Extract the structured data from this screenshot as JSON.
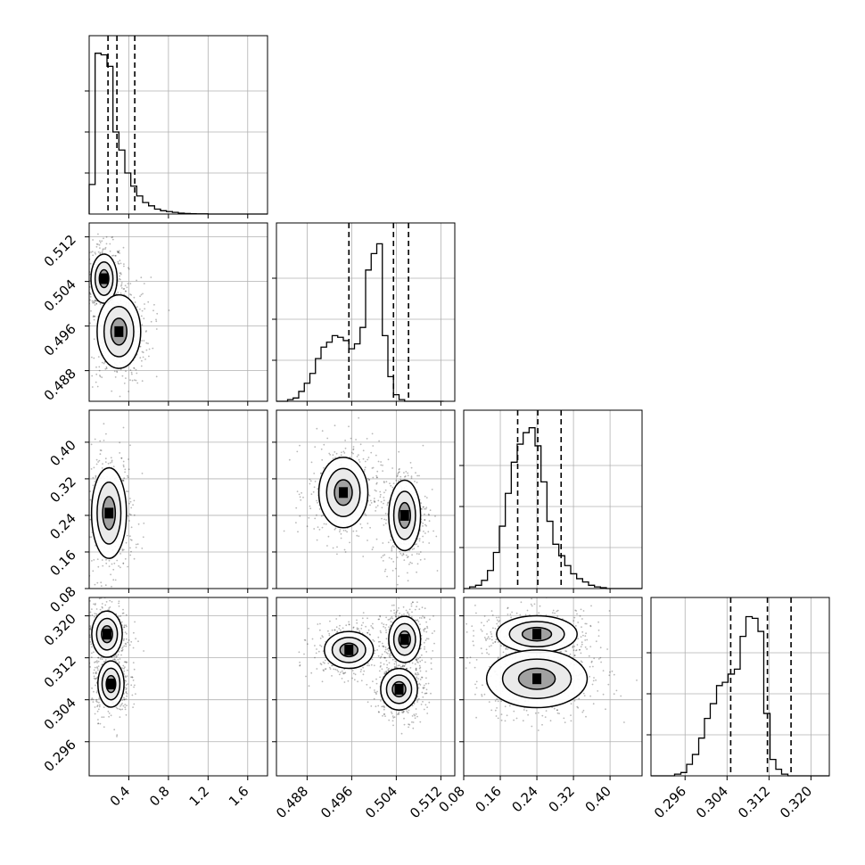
{
  "chart_data": {
    "type": "corner",
    "grid": true,
    "panel_grid": {
      "rows": 4,
      "cols": 4,
      "layout": "lower-triangle"
    },
    "axes": [
      {
        "range": [
          0.0,
          1.8
        ],
        "ticks": [
          "0.4",
          "0.8",
          "1.2",
          "1.6"
        ],
        "tick_values": [
          0.4,
          0.8,
          1.2,
          1.6
        ],
        "quantiles": [
          0.19,
          0.28,
          0.46
        ]
      },
      {
        "range": [
          0.4825,
          0.5145
        ],
        "ticks": [
          "0.488",
          "0.496",
          "0.504",
          "0.512"
        ],
        "tick_values": [
          0.488,
          0.496,
          0.504,
          0.512
        ],
        "quantiles": [
          0.4955,
          0.5035,
          0.5062
        ]
      },
      {
        "range": [
          0.08,
          0.47
        ],
        "ticks": [
          "0.08",
          "0.16",
          "0.24",
          "0.32",
          "0.40"
        ],
        "tick_values": [
          0.08,
          0.16,
          0.24,
          0.32,
          0.4
        ],
        "quantiles": [
          0.198,
          0.242,
          0.293
        ]
      },
      {
        "range": [
          0.2895,
          0.3235
        ],
        "ticks": [
          "0.296",
          "0.304",
          "0.312",
          "0.320"
        ],
        "tick_values": [
          0.296,
          0.304,
          0.312,
          0.32
        ],
        "quantiles": [
          0.3047,
          0.3117,
          0.3162
        ]
      }
    ],
    "histograms": [
      {
        "param": 0,
        "bins": [
          0.0,
          0.06,
          0.12,
          0.18,
          0.24,
          0.3,
          0.36,
          0.42,
          0.48,
          0.54,
          0.6,
          0.66,
          0.72,
          0.78,
          0.84,
          0.9,
          0.96,
          1.02,
          1.08,
          1.14,
          1.2,
          1.26,
          1.32,
          1.38,
          1.44,
          1.5,
          1.56,
          1.62,
          1.68,
          1.74,
          1.8
        ],
        "counts": [
          0.18,
          0.98,
          0.97,
          0.9,
          0.5,
          0.39,
          0.25,
          0.17,
          0.11,
          0.07,
          0.05,
          0.03,
          0.02,
          0.015,
          0.01,
          0.005,
          0.003,
          0.002,
          0.001,
          0.001,
          0.0,
          0.0,
          0.0,
          0.0,
          0.0,
          0.0,
          0.0,
          0.0,
          0.0,
          0.0
        ]
      },
      {
        "param": 1,
        "bins": [
          0.4825,
          0.4835,
          0.4845,
          0.4855,
          0.4865,
          0.4875,
          0.4885,
          0.4895,
          0.4905,
          0.4915,
          0.4925,
          0.4935,
          0.4945,
          0.4955,
          0.4965,
          0.4975,
          0.4985,
          0.4995,
          0.5005,
          0.5015,
          0.5025,
          0.5035,
          0.5045,
          0.5055,
          0.5065,
          0.5075,
          0.5085,
          0.5095,
          0.5105,
          0.5115,
          0.5125
        ],
        "counts": [
          0.0,
          0.0,
          0.01,
          0.02,
          0.06,
          0.11,
          0.17,
          0.26,
          0.33,
          0.36,
          0.4,
          0.39,
          0.37,
          0.32,
          0.35,
          0.45,
          0.8,
          0.9,
          0.96,
          0.4,
          0.15,
          0.04,
          0.01,
          0.0,
          0.0,
          0.0,
          0.0,
          0.0,
          0.0,
          0.0
        ]
      },
      {
        "param": 2,
        "bins": [
          0.08,
          0.093,
          0.106,
          0.119,
          0.132,
          0.145,
          0.158,
          0.171,
          0.184,
          0.197,
          0.21,
          0.223,
          0.236,
          0.249,
          0.262,
          0.275,
          0.288,
          0.301,
          0.314,
          0.327,
          0.34,
          0.353,
          0.366,
          0.379,
          0.392,
          0.405,
          0.418,
          0.431,
          0.444,
          0.457,
          0.47
        ],
        "counts": [
          0.0,
          0.01,
          0.02,
          0.05,
          0.11,
          0.22,
          0.38,
          0.58,
          0.77,
          0.88,
          0.95,
          0.98,
          0.87,
          0.65,
          0.41,
          0.27,
          0.2,
          0.14,
          0.09,
          0.06,
          0.04,
          0.02,
          0.01,
          0.005,
          0.0,
          0.0,
          0.0,
          0.0,
          0.0,
          0.0
        ]
      },
      {
        "param": 3,
        "bins": [
          0.2895,
          0.2906,
          0.2918,
          0.2929,
          0.294,
          0.2952,
          0.2963,
          0.2974,
          0.2986,
          0.2997,
          0.3008,
          0.302,
          0.3031,
          0.3042,
          0.3054,
          0.3065,
          0.3076,
          0.3088,
          0.3099,
          0.311,
          0.3122,
          0.3133,
          0.3144,
          0.3156,
          0.3167,
          0.3178,
          0.319,
          0.3201,
          0.3212,
          0.3224,
          0.3235
        ],
        "counts": [
          0.0,
          0.0,
          0.0,
          0.0,
          0.01,
          0.02,
          0.07,
          0.13,
          0.23,
          0.35,
          0.44,
          0.55,
          0.57,
          0.62,
          0.65,
          0.85,
          0.97,
          0.96,
          0.88,
          0.38,
          0.1,
          0.04,
          0.01,
          0.0,
          0.0,
          0.0,
          0.0,
          0.0,
          0.0,
          0.0
        ]
      }
    ],
    "pairs": [
      {
        "x": 0,
        "y": 1,
        "modes": [
          {
            "cx": 0.15,
            "cy": 0.5045,
            "sx": 0.06,
            "sy": 0.002
          },
          {
            "cx": 0.3,
            "cy": 0.495,
            "sx": 0.1,
            "sy": 0.003
          }
        ]
      },
      {
        "x": 0,
        "y": 2,
        "modes": [
          {
            "cx": 0.2,
            "cy": 0.245,
            "sx": 0.08,
            "sy": 0.045
          }
        ]
      },
      {
        "x": 1,
        "y": 2,
        "modes": [
          {
            "cx": 0.4945,
            "cy": 0.29,
            "sx": 0.002,
            "sy": 0.035
          },
          {
            "cx": 0.5055,
            "cy": 0.24,
            "sx": 0.0013,
            "sy": 0.035
          }
        ]
      },
      {
        "x": 0,
        "y": 3,
        "modes": [
          {
            "cx": 0.18,
            "cy": 0.3165,
            "sx": 0.07,
            "sy": 0.002
          },
          {
            "cx": 0.22,
            "cy": 0.307,
            "sx": 0.06,
            "sy": 0.002
          }
        ]
      },
      {
        "x": 1,
        "y": 3,
        "modes": [
          {
            "cx": 0.4955,
            "cy": 0.3135,
            "sx": 0.002,
            "sy": 0.0016
          },
          {
            "cx": 0.5055,
            "cy": 0.3155,
            "sx": 0.0013,
            "sy": 0.002
          },
          {
            "cx": 0.5045,
            "cy": 0.306,
            "sx": 0.0015,
            "sy": 0.0018
          }
        ]
      },
      {
        "x": 2,
        "y": 3,
        "modes": [
          {
            "cx": 0.24,
            "cy": 0.3165,
            "sx": 0.04,
            "sy": 0.0016
          },
          {
            "cx": 0.24,
            "cy": 0.308,
            "sx": 0.05,
            "sy": 0.0025
          }
        ]
      }
    ]
  }
}
